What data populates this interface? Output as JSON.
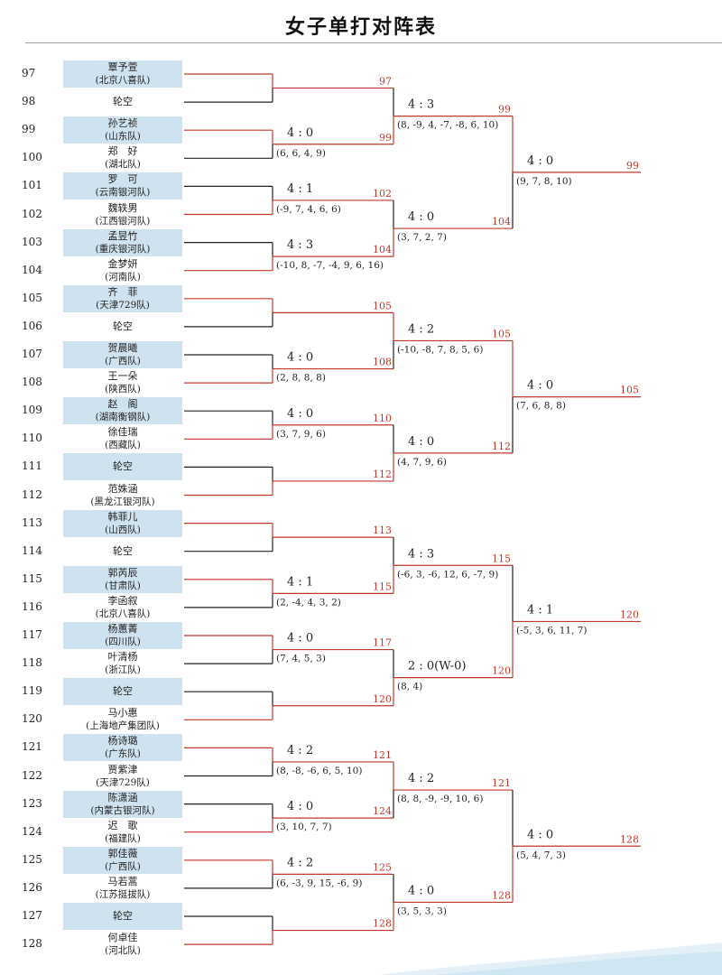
{
  "title": "女子单打对阵表",
  "colors": {
    "red": "#c0392b",
    "black": "#222222",
    "highlight": "#cfe2ef"
  },
  "players": [
    {
      "seed": "97",
      "name": "覃予萱",
      "team": "(北京八喜队)",
      "hl": true
    },
    {
      "seed": "98",
      "name": "轮空",
      "team": "",
      "hl": false
    },
    {
      "seed": "99",
      "name": "孙艺祯",
      "team": "(山东队)",
      "hl": true
    },
    {
      "seed": "100",
      "name": "郑　好",
      "team": "(湖北队)",
      "hl": false
    },
    {
      "seed": "101",
      "name": "罗　可",
      "team": "(云南银河队)",
      "hl": true
    },
    {
      "seed": "102",
      "name": "魏轶男",
      "team": "(江西银河队)",
      "hl": false
    },
    {
      "seed": "103",
      "name": "孟昱竹",
      "team": "(重庆银河队)",
      "hl": true
    },
    {
      "seed": "104",
      "name": "金梦妍",
      "team": "(河南队)",
      "hl": false
    },
    {
      "seed": "105",
      "name": "齐　菲",
      "team": "(天津729队)",
      "hl": true
    },
    {
      "seed": "106",
      "name": "轮空",
      "team": "",
      "hl": false
    },
    {
      "seed": "107",
      "name": "贺晨曦",
      "team": "(广西队)",
      "hl": true
    },
    {
      "seed": "108",
      "name": "王一朵",
      "team": "(陕西队)",
      "hl": false
    },
    {
      "seed": "109",
      "name": "赵　阁",
      "team": "(湖南衡钢队)",
      "hl": true
    },
    {
      "seed": "110",
      "name": "徐佳瑞",
      "team": "(西藏队)",
      "hl": false
    },
    {
      "seed": "111",
      "name": "轮空",
      "team": "",
      "hl": true
    },
    {
      "seed": "112",
      "name": "范姝涵",
      "team": "(黑龙江银河队)",
      "hl": false
    },
    {
      "seed": "113",
      "name": "韩菲儿",
      "team": "(山西队)",
      "hl": true
    },
    {
      "seed": "114",
      "name": "轮空",
      "team": "",
      "hl": false
    },
    {
      "seed": "115",
      "name": "郭芮辰",
      "team": "(甘肃队)",
      "hl": true
    },
    {
      "seed": "116",
      "name": "李函叙",
      "team": "(北京八喜队)",
      "hl": false
    },
    {
      "seed": "117",
      "name": "杨蕙菁",
      "team": "(四川队)",
      "hl": true
    },
    {
      "seed": "118",
      "name": "叶清杨",
      "team": "(浙江队)",
      "hl": false
    },
    {
      "seed": "119",
      "name": "轮空",
      "team": "",
      "hl": true
    },
    {
      "seed": "120",
      "name": "马小惠",
      "team": "(上海地产集团队)",
      "hl": false
    },
    {
      "seed": "121",
      "name": "杨诗璐",
      "team": "(广东队)",
      "hl": true
    },
    {
      "seed": "122",
      "name": "贾紫津",
      "team": "(天津729队)",
      "hl": false
    },
    {
      "seed": "123",
      "name": "陈潇涵",
      "team": "(内蒙古银河队)",
      "hl": true
    },
    {
      "seed": "124",
      "name": "迟　歌",
      "team": "(福建队)",
      "hl": false
    },
    {
      "seed": "125",
      "name": "郭佳薇",
      "team": "(广西队)",
      "hl": true
    },
    {
      "seed": "126",
      "name": "马若蒿",
      "team": "(江苏挺拔队)",
      "hl": false
    },
    {
      "seed": "127",
      "name": "轮空",
      "team": "",
      "hl": true
    },
    {
      "seed": "128",
      "name": "何卓佳",
      "team": "(河北队)",
      "hl": false
    }
  ],
  "round1": [
    {
      "winner": "97",
      "winner_side": "top",
      "score": "",
      "detail": ""
    },
    {
      "winner": "99",
      "winner_side": "top",
      "score": "4 : 0",
      "detail": "(6, 6, 4, 9)"
    },
    {
      "winner": "102",
      "winner_side": "bottom",
      "score": "4 : 1",
      "detail": "(-9, 7, 4, 6, 6)"
    },
    {
      "winner": "104",
      "winner_side": "bottom",
      "score": "4 : 3",
      "detail": "(-10, 8, -7, -4, 9, 6, 16)"
    },
    {
      "winner": "105",
      "winner_side": "top",
      "score": "",
      "detail": ""
    },
    {
      "winner": "108",
      "winner_side": "bottom",
      "score": "4 : 0",
      "detail": "(2, 8, 8, 8)"
    },
    {
      "winner": "110",
      "winner_side": "bottom",
      "score": "4 : 0",
      "detail": "(3, 7, 9, 6)"
    },
    {
      "winner": "112",
      "winner_side": "bottom",
      "score": "",
      "detail": ""
    },
    {
      "winner": "113",
      "winner_side": "top",
      "score": "",
      "detail": ""
    },
    {
      "winner": "115",
      "winner_side": "top",
      "score": "4 : 1",
      "detail": "(2, -4, 4, 3, 2)"
    },
    {
      "winner": "117",
      "winner_side": "top",
      "score": "4 : 0",
      "detail": "(7, 4, 5, 3)"
    },
    {
      "winner": "120",
      "winner_side": "bottom",
      "score": "",
      "detail": ""
    },
    {
      "winner": "121",
      "winner_side": "top",
      "score": "4 : 2",
      "detail": "(8, -8, -6, 6, 5, 10)"
    },
    {
      "winner": "124",
      "winner_side": "bottom",
      "score": "4 : 0",
      "detail": "(3, 10, 7, 7)"
    },
    {
      "winner": "125",
      "winner_side": "top",
      "score": "4 : 2",
      "detail": "(6, -3, 9, 15, -6, 9)"
    },
    {
      "winner": "128",
      "winner_side": "bottom",
      "score": "",
      "detail": ""
    }
  ],
  "round2": [
    {
      "winner": "99",
      "winner_side": "bottom",
      "score": "4 : 3",
      "detail": "(8, -9, 4, -7, -8, 6, 10)"
    },
    {
      "winner": "104",
      "winner_side": "bottom",
      "score": "4 : 0",
      "detail": "(3, 7, 2, 7)"
    },
    {
      "winner": "105",
      "winner_side": "top",
      "score": "4 : 2",
      "detail": "(-10, -8, 7, 8, 5, 6)"
    },
    {
      "winner": "112",
      "winner_side": "bottom",
      "score": "4 : 0",
      "detail": "(4, 7, 9, 6)"
    },
    {
      "winner": "115",
      "winner_side": "bottom",
      "score": "4 : 3",
      "detail": "(-6, 3, -6, 12, 6, -7, 9)"
    },
    {
      "winner": "120",
      "winner_side": "bottom",
      "score": "2 : 0(W-0)",
      "detail": "(8, 4)"
    },
    {
      "winner": "121",
      "winner_side": "top",
      "score": "4 : 2",
      "detail": "(8, 8, -9, -9, 10, 6)"
    },
    {
      "winner": "128",
      "winner_side": "bottom",
      "score": "4 : 0",
      "detail": "(3, 5, 3, 3)"
    }
  ],
  "round3": [
    {
      "winner": "99",
      "winner_side": "top",
      "score": "4 : 0",
      "detail": "(9, 7, 8, 10)"
    },
    {
      "winner": "105",
      "winner_side": "top",
      "score": "4 : 0",
      "detail": "(7, 6, 8, 8)"
    },
    {
      "winner": "120",
      "winner_side": "bottom",
      "score": "4 : 1",
      "detail": "(-5, 3, 6, 11, 7)"
    },
    {
      "winner": "128",
      "winner_side": "bottom",
      "score": "4 : 0",
      "detail": "(5, 4, 7, 3)"
    }
  ]
}
